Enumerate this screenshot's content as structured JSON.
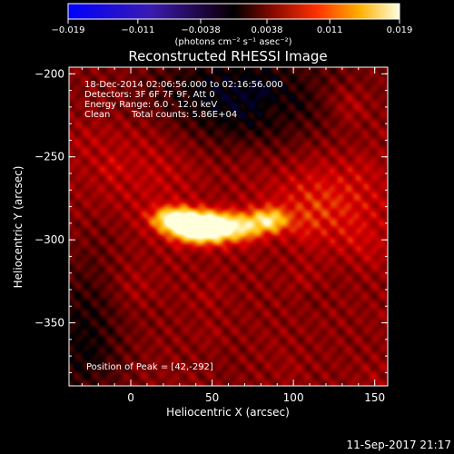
{
  "chart_data": {
    "type": "heatmap",
    "title": "Reconstructed RHESSI Image",
    "xlabel": "Heliocentric X (arcsec)",
    "ylabel": "Heliocentric Y (arcsec)",
    "xlim": [
      -38,
      158
    ],
    "ylim": [
      -388,
      -196
    ],
    "x_ticks": [
      0,
      50,
      100,
      150
    ],
    "y_ticks": [
      -200,
      -250,
      -300,
      -350
    ],
    "x_tick_labels": [
      "0",
      "50",
      "100",
      "150"
    ],
    "y_tick_labels": [
      "−200",
      "−250",
      "−300",
      "−350"
    ],
    "colorbar": {
      "min": -0.019,
      "max": 0.019,
      "ticks": [
        -0.019,
        -0.011,
        -0.0038,
        0.0038,
        0.011,
        0.019
      ],
      "tick_labels": [
        "−0.019",
        "−0.011",
        "−0.0038",
        "0.0038",
        "0.011",
        "0.019"
      ],
      "units": "(photons cm⁻² s⁻¹ asec⁻²)",
      "colormap": "RHESSI blue-black-red-yellow-white"
    },
    "annotations": {
      "time_range": "18-Dec-2014 02:06:56.000 to 02:16:56.000",
      "detectors": "Detectors: 3F 6F 7F 9F, Att 0",
      "energy_range": "Energy Range: 6.0 - 12.0 keV",
      "clean_label": "Clean",
      "total_counts": "Total counts: 5.86E+04",
      "peak_position": "Position of Peak = [42,-292]"
    },
    "peak": [
      42,
      -292
    ],
    "sources": [
      {
        "x": 40,
        "y": -292,
        "sx": 11,
        "sy": 6,
        "amp": 1.0
      },
      {
        "x": 25,
        "y": -287,
        "sx": 9,
        "sy": 5,
        "amp": 0.55
      },
      {
        "x": 60,
        "y": -292,
        "sx": 12,
        "sy": 6,
        "amp": 0.6
      },
      {
        "x": 85,
        "y": -288,
        "sx": 8,
        "sy": 5,
        "amp": 0.5
      },
      {
        "x": 120,
        "y": -278,
        "sx": 28,
        "sy": 20,
        "amp": 0.22
      },
      {
        "x": 10,
        "y": -245,
        "sx": 30,
        "sy": 30,
        "amp": 0.15
      }
    ]
  },
  "footer": {
    "timestamp": "11-Sep-2017 21:17"
  }
}
